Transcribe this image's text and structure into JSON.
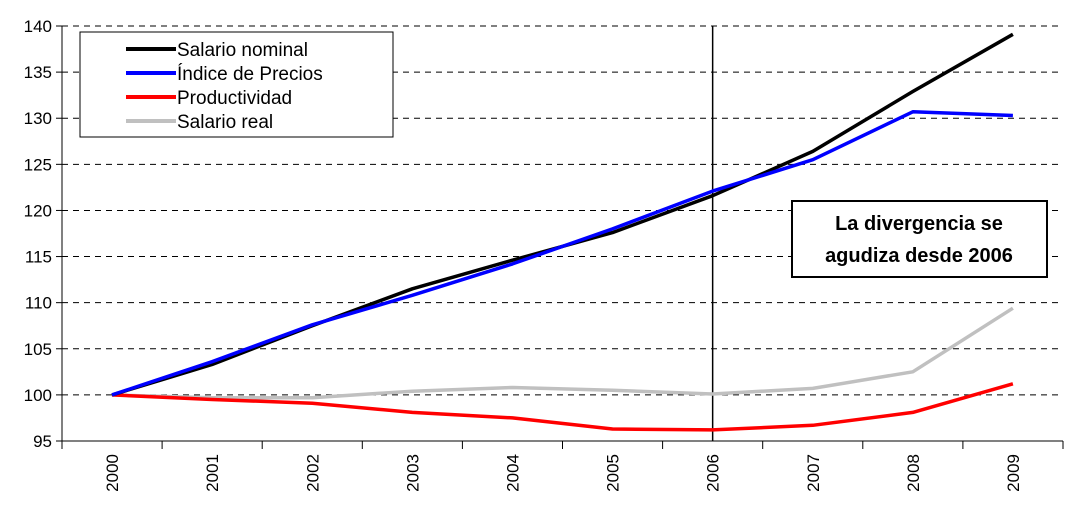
{
  "chart_data": {
    "type": "line",
    "title": "",
    "xlabel": "",
    "ylabel": "",
    "x": [
      "2000",
      "2001",
      "2002",
      "2003",
      "2004",
      "2005",
      "2006",
      "2007",
      "2008",
      "2009"
    ],
    "ylim": [
      95,
      140
    ],
    "yticks": [
      95,
      100,
      105,
      110,
      115,
      120,
      125,
      130,
      135,
      140
    ],
    "grid": "horizontal dashed",
    "legend_position": "top-left",
    "series": [
      {
        "name": "Salario nominal",
        "color": "#000000",
        "values": [
          100,
          103.3,
          107.5,
          111.5,
          114.6,
          117.6,
          121.6,
          126.4,
          132.9,
          139.1
        ]
      },
      {
        "name": "Índice de Precios",
        "color": "#0000ff",
        "values": [
          100,
          103.6,
          107.6,
          110.8,
          114.2,
          118.0,
          122.1,
          125.5,
          130.7,
          130.3
        ]
      },
      {
        "name": "Productividad",
        "color": "#ff0000",
        "values": [
          100,
          99.5,
          99.1,
          98.1,
          97.5,
          96.3,
          96.2,
          96.7,
          98.1,
          101.2
        ]
      },
      {
        "name": "Salario real",
        "color": "#c0c0c0",
        "values": [
          100,
          99.7,
          99.7,
          100.4,
          100.8,
          100.5,
          100.1,
          100.7,
          102.5,
          109.4
        ]
      }
    ],
    "vertical_marker": "2006",
    "annotation": {
      "line1": "La divergencia se",
      "line2": "agudiza desde 2006"
    }
  }
}
